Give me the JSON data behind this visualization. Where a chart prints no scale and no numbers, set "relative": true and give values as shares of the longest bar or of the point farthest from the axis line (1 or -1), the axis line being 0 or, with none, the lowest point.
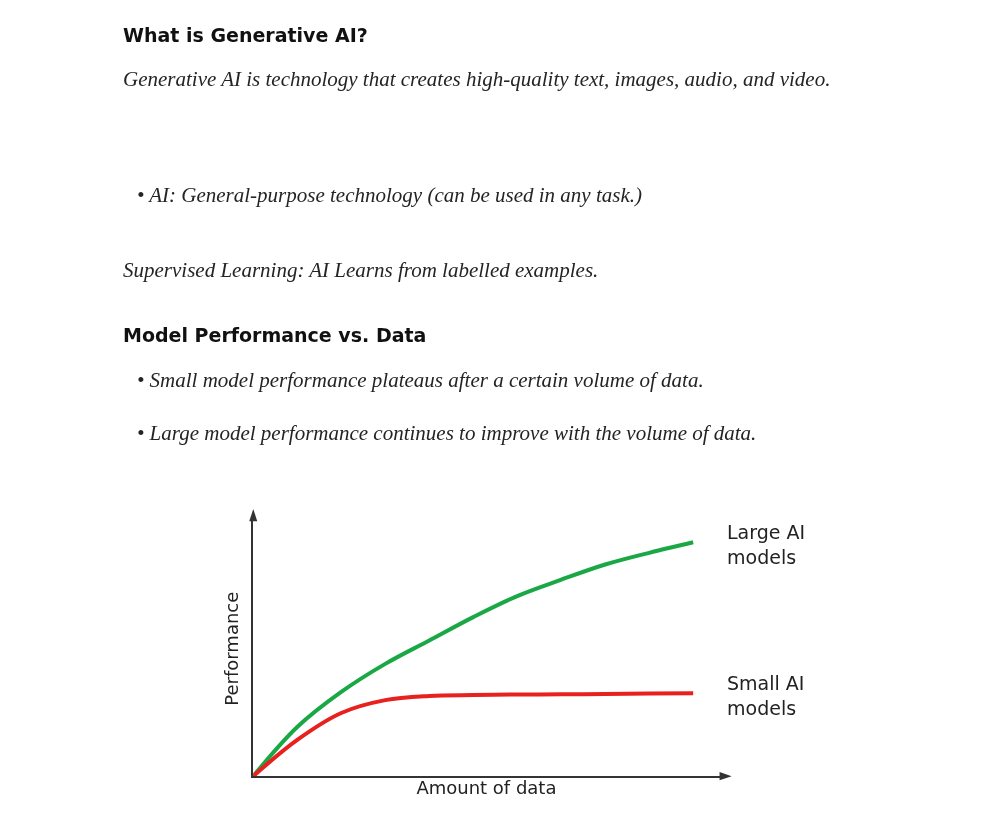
{
  "chart_data": {
    "type": "line",
    "title": "What is Generative AI?",
    "subtitle": "Model Performance vs. Data",
    "annotations": [
      "Generative AI is technology that creates high-quality text, images, audio, and video.",
      "• AI: General-purpose technology (can be used in any task.)",
      "Supervised Learning: AI Learns from labelled examples.",
      "• Small model performance plateaus after a certain volume of data.",
      "• Large model performance continues to improve with the volume of data."
    ],
    "xlabel": "Amount of data",
    "ylabel": "Performance",
    "relative": true,
    "legend": false,
    "marker": "none",
    "line_style": "solid",
    "categories": [
      null,
      null,
      null,
      null,
      null,
      null,
      null,
      null,
      null,
      null,
      null
    ],
    "series": [
      {
        "name": "Large AI models",
        "color": "#1aa846",
        "values": [
          0,
          0.21,
          0.36,
          0.48,
          0.58,
          0.68,
          0.77,
          0.84,
          0.905,
          0.955,
          1
        ]
      },
      {
        "name": "Small AI models",
        "color": "#e8201e",
        "values": [
          0,
          0.155,
          0.27,
          0.325,
          0.343,
          0.347,
          0.349,
          0.35,
          0.351,
          0.353,
          0.355
        ]
      }
    ]
  }
}
